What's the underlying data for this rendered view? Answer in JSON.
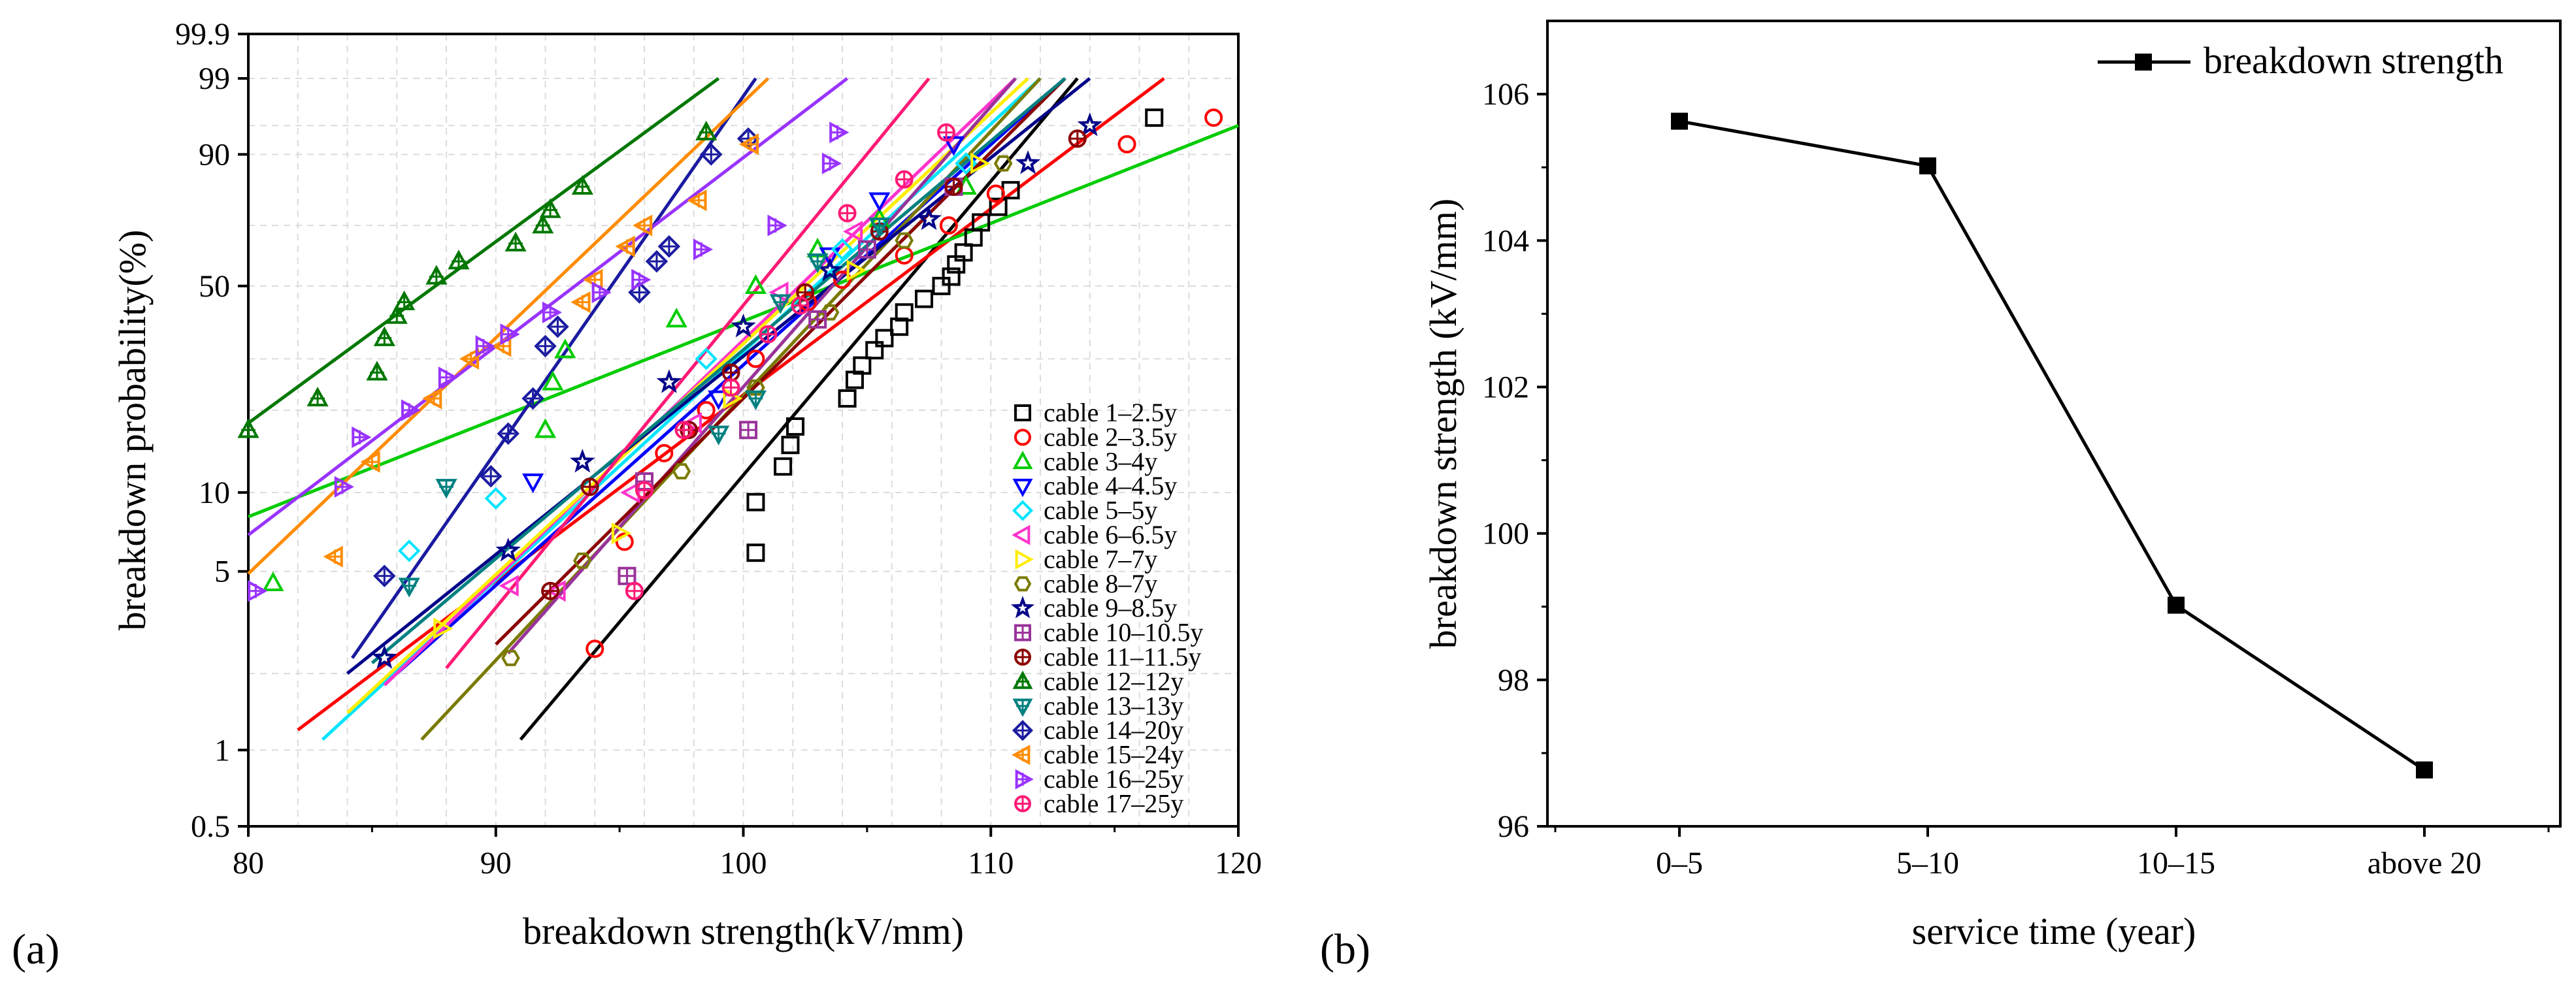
{
  "chart_data": [
    {
      "id": "a",
      "type": "scatter",
      "panel_label": "(a)",
      "title": "",
      "xlabel": "breakdown strength(kV/mm)",
      "ylabel": "breakdown probability(%)",
      "xlim": [
        80,
        120
      ],
      "x_ticks": [
        "80",
        "90",
        "100",
        "110",
        "120"
      ],
      "y_scale": "weibull",
      "ylim": [
        0.5,
        99.9
      ],
      "y_ticks": [
        {
          "value": 0.5,
          "label": "0.5"
        },
        {
          "value": 1,
          "label": "1"
        },
        {
          "value": 5,
          "label": "5"
        },
        {
          "value": 10,
          "label": "10"
        },
        {
          "value": 50,
          "label": "50"
        },
        {
          "value": 90,
          "label": "90"
        },
        {
          "value": 99,
          "label": "99"
        },
        {
          "value": 99.9,
          "label": "99.9"
        }
      ],
      "legend_position": "right",
      "series": [
        {
          "name": "cable 1–2.5y",
          "color": "#000000",
          "marker": "square",
          "points": [
            [
              100.5,
              5.9
            ],
            [
              100.5,
              9.2
            ],
            [
              101.6,
              12.5
            ],
            [
              101.9,
              15
            ],
            [
              102.1,
              17.5
            ],
            [
              104.2,
              22
            ],
            [
              104.5,
              25.5
            ],
            [
              104.8,
              28.5
            ],
            [
              105.3,
              32
            ],
            [
              105.7,
              35
            ],
            [
              106.3,
              38
            ],
            [
              106.5,
              42
            ],
            [
              107.3,
              46
            ],
            [
              108.0,
              50
            ],
            [
              108.4,
              53
            ],
            [
              108.6,
              57
            ],
            [
              108.9,
              61
            ],
            [
              109.3,
              66
            ],
            [
              109.6,
              71
            ],
            [
              110.3,
              76
            ],
            [
              110.8,
              81
            ],
            [
              116.6,
              96
            ]
          ],
          "fit": [
            [
              91,
              1.1
            ],
            [
              113.5,
              99
            ]
          ]
        },
        {
          "name": "cable 2–3.5y",
          "color": "#ff0000",
          "marker": "circle",
          "points": [
            [
              94.0,
              2.5
            ],
            [
              95.2,
              6.5
            ],
            [
              96.8,
              14
            ],
            [
              98.5,
              20
            ],
            [
              100.5,
              30
            ],
            [
              102.6,
              45
            ],
            [
              104.0,
              52
            ],
            [
              106.5,
              60
            ],
            [
              108.3,
              70
            ],
            [
              110.2,
              80
            ],
            [
              115.5,
              92
            ],
            [
              119.0,
              96
            ]
          ],
          "fit": [
            [
              82,
              1.2
            ],
            [
              117,
              99
            ]
          ]
        },
        {
          "name": "cable 3–4y",
          "color": "#00cc00",
          "marker": "triangle-up",
          "points": [
            [
              81.0,
              4.5
            ],
            [
              92.0,
              17
            ],
            [
              92.3,
              25
            ],
            [
              92.8,
              32
            ],
            [
              97.3,
              40
            ],
            [
              100.5,
              50
            ],
            [
              103.0,
              62
            ],
            [
              105.5,
              72
            ],
            [
              109.0,
              82
            ]
          ],
          "fit": [
            [
              80,
              8.1
            ],
            [
              120,
              95
            ]
          ]
        },
        {
          "name": "cable 4–4.5y",
          "color": "#0000ff",
          "marker": "triangle-down",
          "points": [
            [
              91.5,
              11
            ],
            [
              99.0,
              22
            ],
            [
              103.5,
              60
            ],
            [
              105.5,
              78
            ],
            [
              108.5,
              92
            ]
          ],
          "fit": [
            [
              86,
              2
            ],
            [
              113,
              99
            ]
          ]
        },
        {
          "name": "cable 5–5y",
          "color": "#00e5ff",
          "marker": "diamond",
          "points": [
            [
              86.5,
              6
            ],
            [
              90.0,
              9.5
            ],
            [
              98.5,
              30
            ],
            [
              104.0,
              62
            ],
            [
              109.0,
              88
            ]
          ],
          "fit": [
            [
              83,
              1.1
            ],
            [
              112,
              99
            ]
          ]
        },
        {
          "name": "cable 6–6.5y",
          "color": "#ff33cc",
          "marker": "triangle-left",
          "points": [
            [
              90.6,
              4.4
            ],
            [
              92.5,
              4.2
            ],
            [
              95.5,
              10
            ],
            [
              98.0,
              18
            ],
            [
              101.5,
              48
            ],
            [
              104.5,
              68
            ]
          ],
          "fit": [
            [
              85.5,
              1.8
            ],
            [
              111,
              99
            ]
          ]
        },
        {
          "name": "cable 7–7y",
          "color": "#ffee00",
          "marker": "triangle-right",
          "points": [
            [
              87.8,
              3.0
            ],
            [
              95.0,
              7
            ],
            [
              99.5,
              22
            ],
            [
              104.5,
              55
            ],
            [
              109.5,
              88
            ]
          ],
          "fit": [
            [
              84,
              1.4
            ],
            [
              111.5,
              99
            ]
          ]
        },
        {
          "name": "cable 8–7y",
          "color": "#7a7a00",
          "marker": "hexagon",
          "points": [
            [
              90.6,
              2.3
            ],
            [
              93.5,
              5.5
            ],
            [
              97.5,
              12
            ],
            [
              100.5,
              24
            ],
            [
              103.5,
              42
            ],
            [
              106.5,
              65
            ],
            [
              110.5,
              88
            ]
          ],
          "fit": [
            [
              87,
              1.1
            ],
            [
              112,
              99
            ]
          ]
        },
        {
          "name": "cable 9–8.5y",
          "color": "#000088",
          "marker": "star",
          "points": [
            [
              85.5,
              2.3
            ],
            [
              90.5,
              6
            ],
            [
              93.5,
              13
            ],
            [
              97.0,
              25
            ],
            [
              100.0,
              38
            ],
            [
              103.5,
              55
            ],
            [
              107.5,
              72
            ],
            [
              111.5,
              88
            ],
            [
              114.0,
              95
            ]
          ],
          "fit": [
            [
              84,
              2
            ],
            [
              114,
              99
            ]
          ]
        },
        {
          "name": "cable 10–10.5y",
          "color": "#993399",
          "marker": "square-cross",
          "points": [
            [
              95.3,
              4.8
            ],
            [
              96.0,
              11
            ],
            [
              100.2,
              17
            ],
            [
              103.0,
              40
            ],
            [
              105.0,
              62
            ],
            [
              108.5,
              82
            ]
          ],
          "fit": [
            [
              90.5,
              2.4
            ],
            [
              111,
              99
            ]
          ]
        },
        {
          "name": "cable 11–11.5y",
          "color": "#8b0000",
          "marker": "circle-cross",
          "points": [
            [
              92.2,
              4.2
            ],
            [
              93.8,
              10.5
            ],
            [
              97.8,
              17
            ],
            [
              99.5,
              27
            ],
            [
              102.5,
              48
            ],
            [
              105.5,
              68
            ],
            [
              108.5,
              82
            ],
            [
              113.5,
              93
            ]
          ],
          "fit": [
            [
              90,
              2.6
            ],
            [
              113,
              99
            ]
          ]
        },
        {
          "name": "cable 12–12y",
          "color": "#007700",
          "marker": "triangle-up-cross",
          "points": [
            [
              80.0,
              17
            ],
            [
              82.8,
              22
            ],
            [
              85.2,
              27
            ],
            [
              85.5,
              35
            ],
            [
              86.0,
              41
            ],
            [
              86.3,
              45
            ],
            [
              87.6,
              53
            ],
            [
              88.5,
              58
            ],
            [
              90.8,
              64
            ],
            [
              91.9,
              70
            ],
            [
              92.2,
              75
            ],
            [
              93.5,
              82
            ],
            [
              98.5,
              94
            ]
          ],
          "fit": [
            [
              80,
              18
            ],
            [
              99,
              99
            ]
          ]
        },
        {
          "name": "cable 13–13y",
          "color": "#008080",
          "marker": "triangle-down-cross",
          "points": [
            [
              86.5,
              4.4
            ],
            [
              88.0,
              10.5
            ],
            [
              99.0,
              16.5
            ],
            [
              100.5,
              22
            ],
            [
              101.5,
              45
            ],
            [
              103.0,
              58
            ],
            [
              105.5,
              70
            ]
          ],
          "fit": [
            [
              85,
              2.2
            ],
            [
              113,
              99
            ]
          ]
        },
        {
          "name": "cable 14–20y",
          "color": "#1a1aa0",
          "marker": "diamond-cross",
          "points": [
            [
              85.5,
              4.8
            ],
            [
              89.8,
              11.5
            ],
            [
              90.5,
              16.5
            ],
            [
              91.5,
              22
            ],
            [
              92.0,
              33
            ],
            [
              92.5,
              38
            ],
            [
              95.8,
              48
            ],
            [
              96.5,
              58
            ],
            [
              97.0,
              63
            ],
            [
              98.7,
              90
            ],
            [
              100.2,
              93
            ]
          ],
          "fit": [
            [
              84.2,
              2.3
            ],
            [
              100.5,
              99
            ]
          ]
        },
        {
          "name": "cable 15–24y",
          "color": "#ff8c00",
          "marker": "triangle-left-cross",
          "points": [
            [
              83.5,
              5.7
            ],
            [
              85.0,
              13
            ],
            [
              87.5,
              22
            ],
            [
              89.0,
              30
            ],
            [
              90.3,
              33
            ],
            [
              93.5,
              45
            ],
            [
              94.0,
              52
            ],
            [
              95.3,
              63
            ],
            [
              96.0,
              70
            ],
            [
              98.2,
              78
            ],
            [
              100.3,
              92
            ]
          ],
          "fit": [
            [
              80,
              4.9
            ],
            [
              101,
              99
            ]
          ]
        },
        {
          "name": "cable 16–25y",
          "color": "#9933ff",
          "marker": "triangle-right-cross",
          "points": [
            [
              80.3,
              4.2
            ],
            [
              83.8,
              10.5
            ],
            [
              84.5,
              16
            ],
            [
              86.5,
              20
            ],
            [
              88.0,
              26
            ],
            [
              89.5,
              33
            ],
            [
              90.5,
              36
            ],
            [
              92.2,
              42
            ],
            [
              94.2,
              48
            ],
            [
              95.8,
              52
            ],
            [
              98.3,
              62
            ],
            [
              101.3,
              70
            ],
            [
              103.5,
              88
            ],
            [
              103.8,
              94
            ]
          ],
          "fit": [
            [
              80,
              6.9
            ],
            [
              104.2,
              99
            ]
          ]
        },
        {
          "name": "cable 17–25y",
          "color": "#ff1a75",
          "marker": "circle-cross",
          "points": [
            [
              95.6,
              4.2
            ],
            [
              96.0,
              10.2
            ],
            [
              97.6,
              17
            ],
            [
              99.5,
              24
            ],
            [
              101.0,
              36
            ],
            [
              102.3,
              44
            ],
            [
              104.2,
              74
            ],
            [
              106.5,
              84
            ],
            [
              108.2,
              94
            ]
          ],
          "fit": [
            [
              88,
              2.1
            ],
            [
              107.5,
              99
            ]
          ]
        }
      ]
    },
    {
      "id": "b",
      "type": "line",
      "panel_label": "(b)",
      "title": "",
      "xlabel": "service time (year)",
      "ylabel": "breakdown strength (kV/mm)",
      "categories": [
        "0–5",
        "5–10",
        "10–15",
        "above 20"
      ],
      "ylim": [
        96,
        107
      ],
      "y_ticks": [
        "96",
        "98",
        "100",
        "102",
        "104",
        "106"
      ],
      "legend_position": "top-right",
      "series": [
        {
          "name": "breakdown strength",
          "color": "#000000",
          "marker": "square",
          "values": [
            105.63,
            105.02,
            99.02,
            96.77
          ]
        }
      ]
    }
  ]
}
